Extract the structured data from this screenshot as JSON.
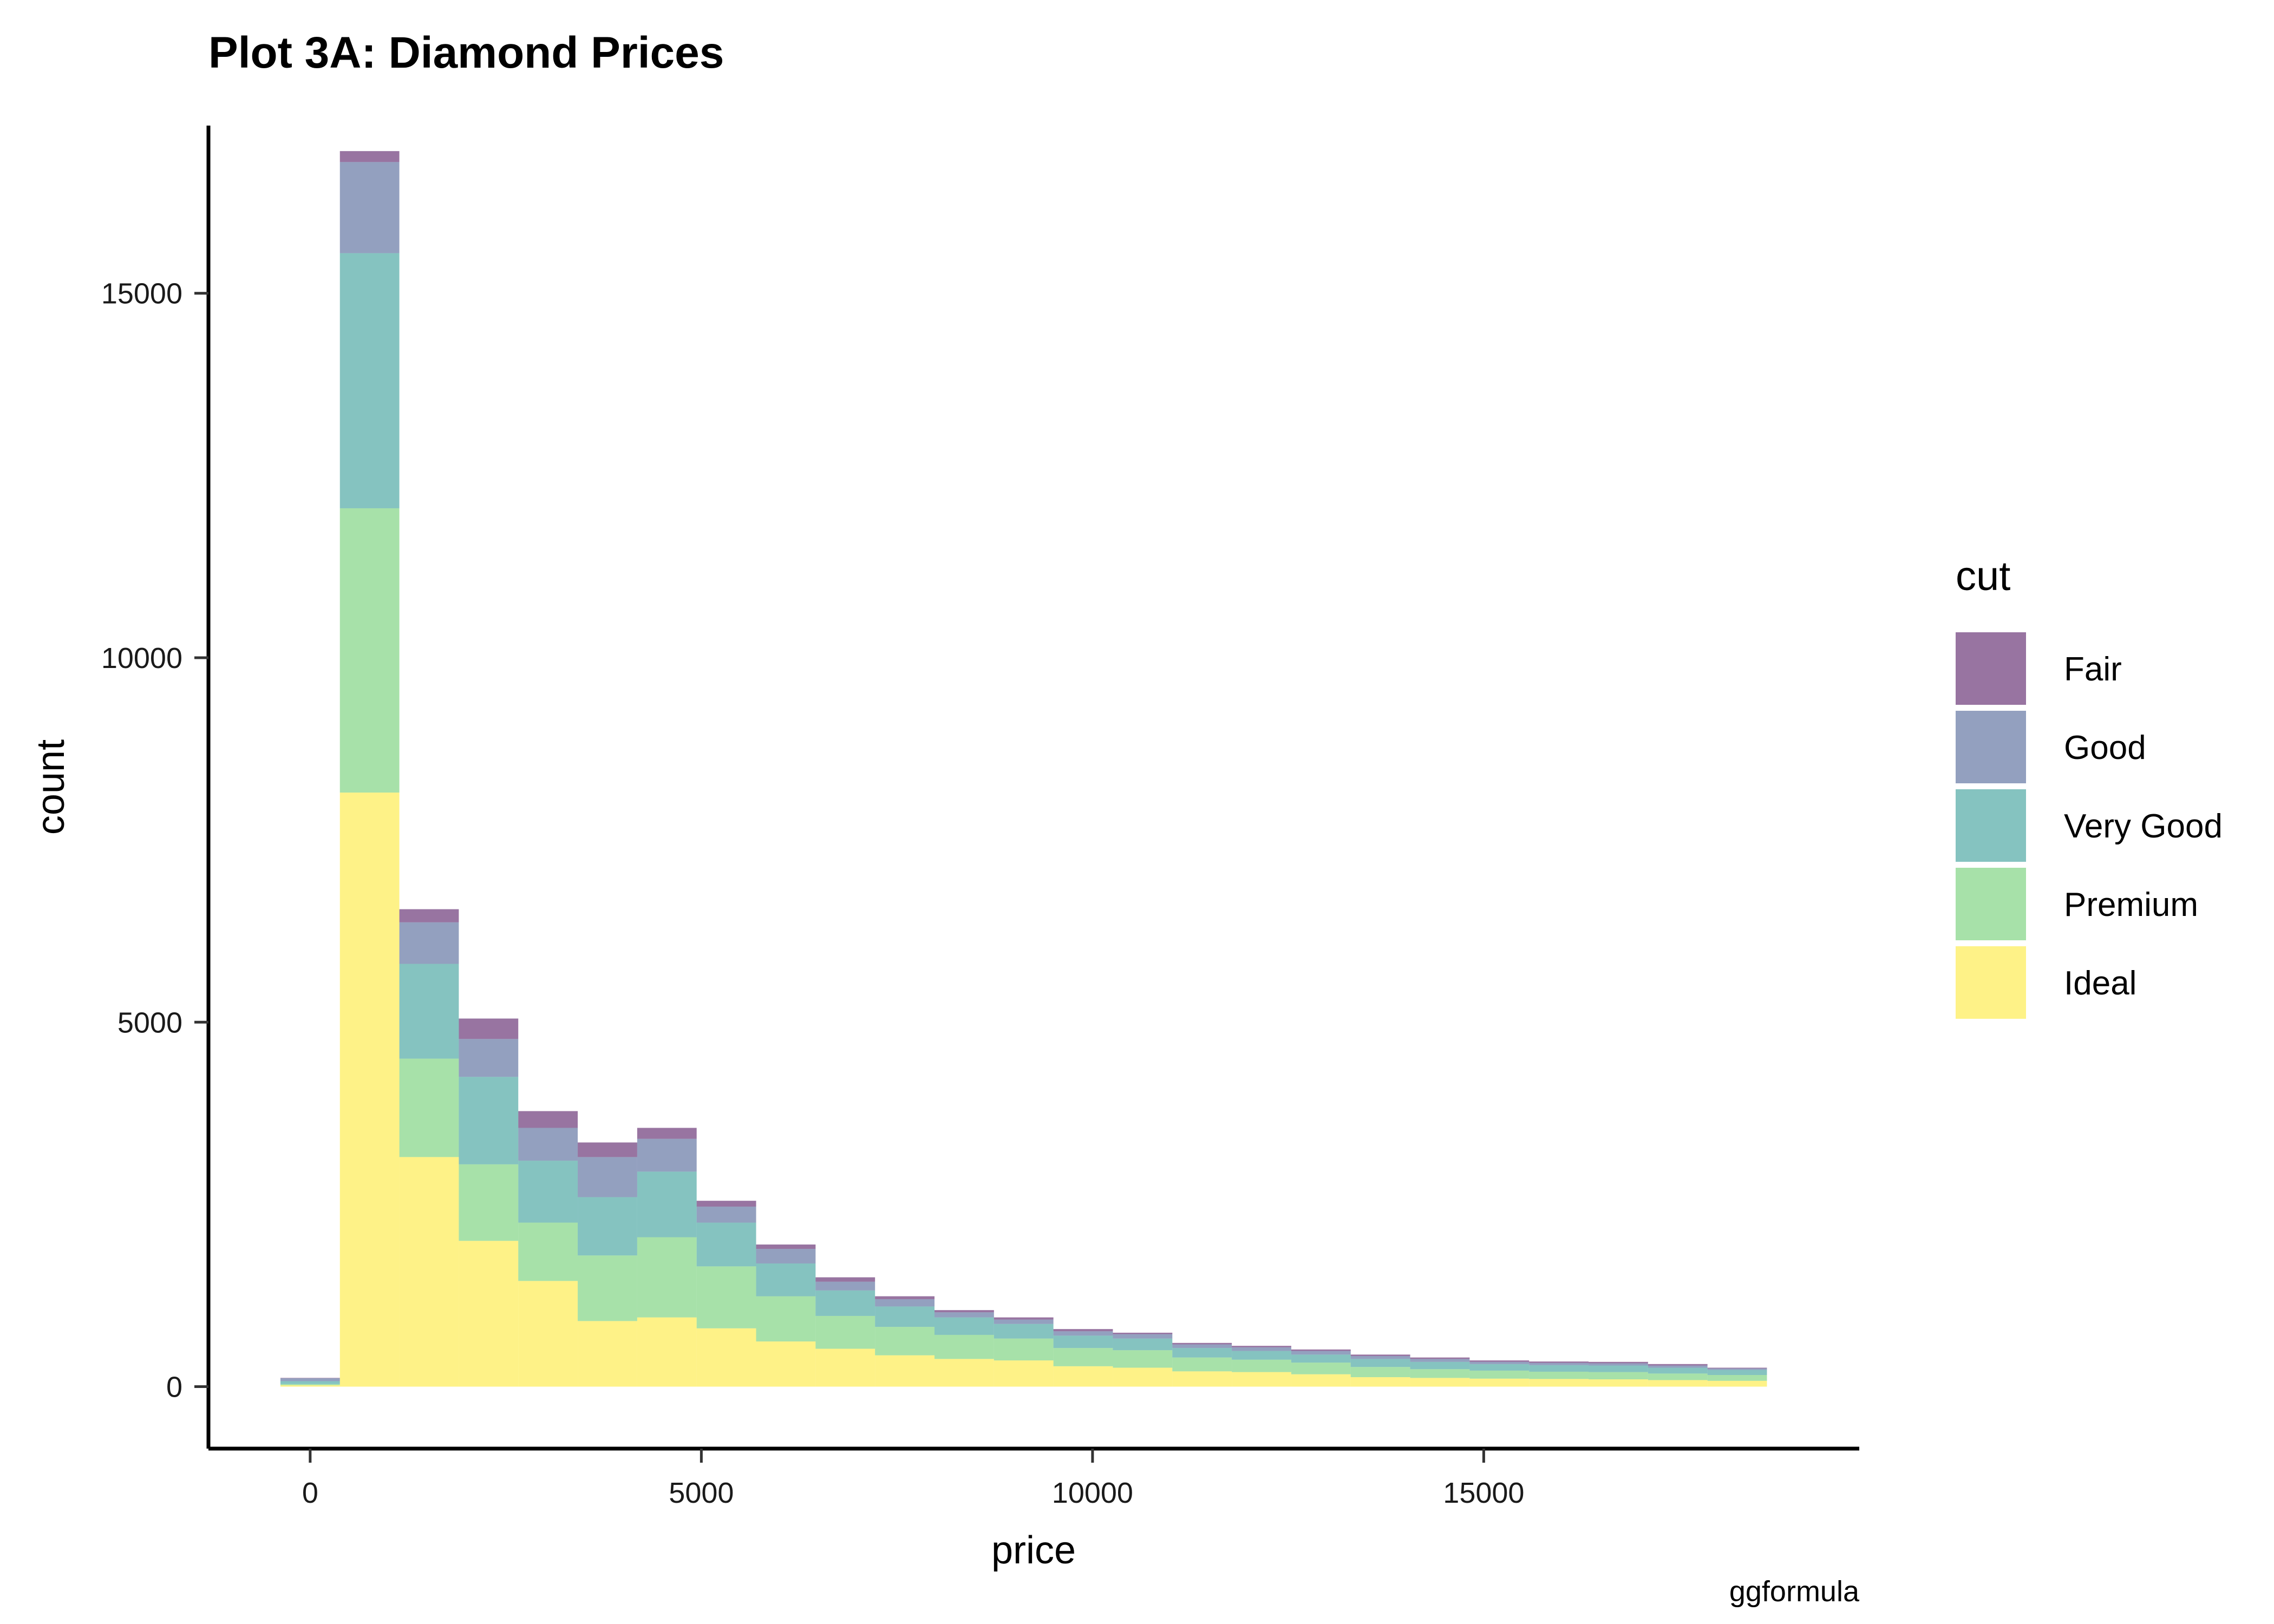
{
  "chart_data": {
    "type": "bar",
    "stacked": true,
    "title": "Plot 3A: Diamond Prices",
    "xlabel": "price",
    "ylabel": "count",
    "caption": "ggformula",
    "legend": {
      "title": "cut",
      "position": "right"
    },
    "xlim": [
      -1300,
      19800
    ],
    "ylim": [
      -850,
      17300
    ],
    "xticks": [
      0,
      5000,
      10000,
      15000
    ],
    "yticks": [
      0,
      5000,
      10000,
      15000
    ],
    "grid": false,
    "bin_width": 760,
    "bin_centers": [
      0,
      760,
      1520,
      2280,
      3040,
      3800,
      4560,
      5320,
      6080,
      6840,
      7600,
      8360,
      9120,
      9880,
      10640,
      11400,
      12160,
      12920,
      13680,
      14440,
      15200,
      15960,
      16720,
      17480,
      18240
    ],
    "series": [
      {
        "name": "Ideal",
        "color": "#fde725",
        "values": [
          20,
          8150,
          3150,
          2000,
          1450,
          900,
          950,
          800,
          620,
          520,
          430,
          380,
          360,
          280,
          260,
          210,
          200,
          170,
          130,
          120,
          110,
          105,
          100,
          90,
          80
        ]
      },
      {
        "name": "Premium",
        "color": "#5ec962",
        "values": [
          15,
          3900,
          1350,
          1050,
          800,
          900,
          1100,
          850,
          620,
          450,
          390,
          330,
          300,
          250,
          240,
          190,
          170,
          160,
          140,
          120,
          110,
          100,
          100,
          90,
          80
        ]
      },
      {
        "name": "Very Good",
        "color": "#21918c",
        "values": [
          40,
          3500,
          1300,
          1200,
          850,
          800,
          900,
          600,
          450,
          350,
          280,
          240,
          200,
          170,
          160,
          130,
          120,
          110,
          110,
          100,
          90,
          90,
          90,
          80,
          70
        ]
      },
      {
        "name": "Good",
        "color": "#3b528b",
        "values": [
          40,
          1250,
          570,
          520,
          450,
          550,
          450,
          220,
          200,
          120,
          100,
          70,
          60,
          60,
          60,
          50,
          50,
          50,
          40,
          40,
          30,
          30,
          30,
          30,
          20
        ]
      },
      {
        "name": "Fair",
        "color": "#440154",
        "values": [
          5,
          150,
          180,
          280,
          230,
          200,
          150,
          80,
          60,
          60,
          40,
          30,
          30,
          30,
          20,
          20,
          20,
          20,
          20,
          20,
          20,
          20,
          20,
          20,
          10
        ]
      }
    ],
    "legend_order": [
      "Fair",
      "Good",
      "Very Good",
      "Premium",
      "Ideal"
    ],
    "fill_opacity": 0.55
  }
}
